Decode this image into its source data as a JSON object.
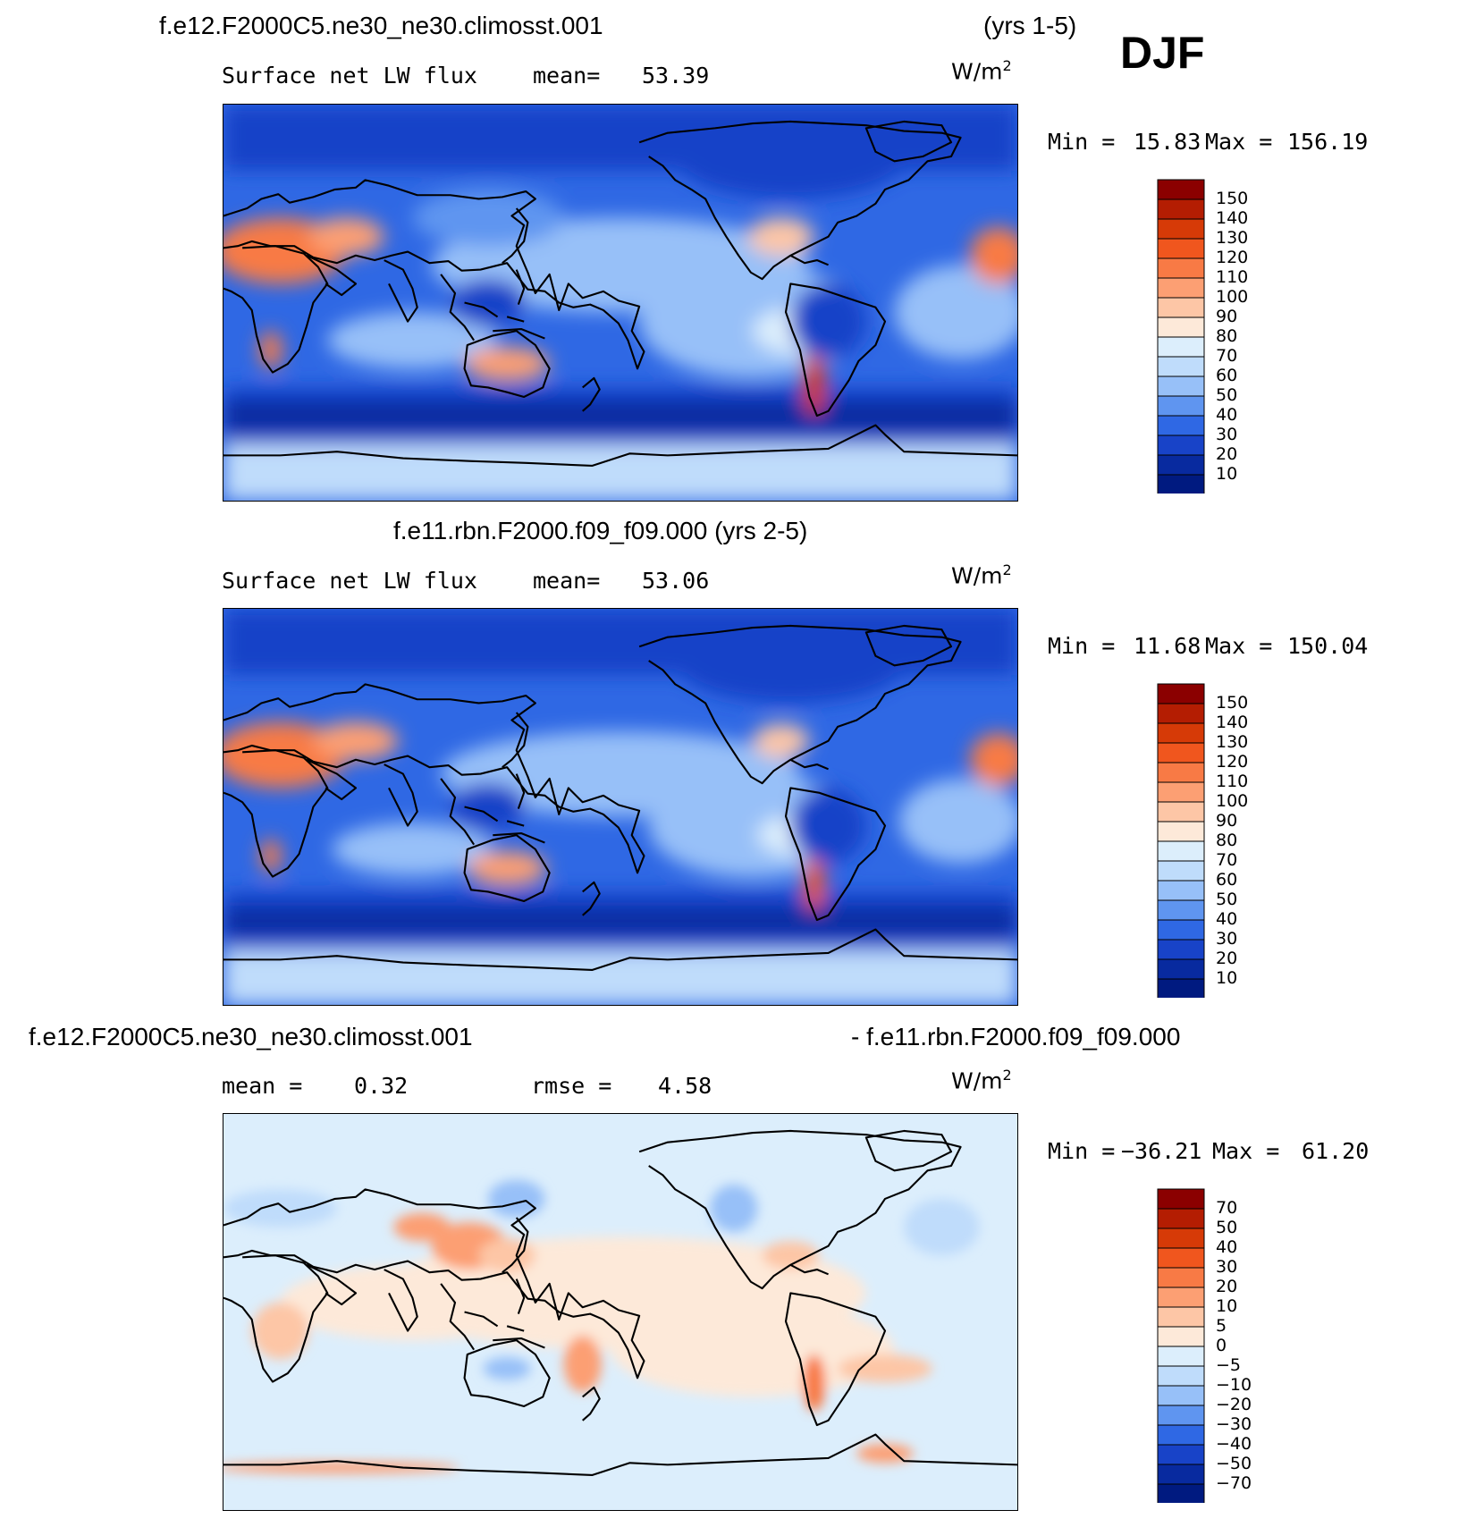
{
  "figure": {
    "season": "DJF",
    "panels": [
      {
        "id": "top",
        "case_title": "f.e12.F2000C5.ne30_ne30.climosst.001",
        "years": "(yrs 1-5)",
        "variable": "Surface net LW flux",
        "stat1_label": "mean=",
        "stat1_value": "53.39",
        "units": "W/m",
        "units_exp": "2",
        "min_label": "Min =",
        "min_value": "15.83",
        "max_label": "Max =",
        "max_value": "156.19",
        "colorbar": {
          "labels": [
            "150",
            "140",
            "130",
            "120",
            "110",
            "100",
            "90",
            "80",
            "70",
            "60",
            "50",
            "40",
            "30",
            "20",
            "10"
          ],
          "colors": [
            "#8b0000",
            "#b41d02",
            "#d63a07",
            "#f0561e",
            "#f87a45",
            "#fc9f73",
            "#fdc6a6",
            "#fde9d9",
            "#dceefc",
            "#bfdcfb",
            "#97c0f8",
            "#5f95f0",
            "#2f68e4",
            "#1843c8",
            "#082a9f",
            "#001a80"
          ]
        }
      },
      {
        "id": "middle",
        "case_title": "f.e11.rbn.F2000.f09_f09.000 (yrs 2-5)",
        "variable": "Surface net LW flux",
        "stat1_label": "mean=",
        "stat1_value": "53.06",
        "units": "W/m",
        "units_exp": "2",
        "min_label": "Min =",
        "min_value": "11.68",
        "max_label": "Max =",
        "max_value": "150.04",
        "colorbar": {
          "labels": [
            "150",
            "140",
            "130",
            "120",
            "110",
            "100",
            "90",
            "80",
            "70",
            "60",
            "50",
            "40",
            "30",
            "20",
            "10"
          ],
          "colors": [
            "#8b0000",
            "#b41d02",
            "#d63a07",
            "#f0561e",
            "#f87a45",
            "#fc9f73",
            "#fdc6a6",
            "#fde9d9",
            "#dceefc",
            "#bfdcfb",
            "#97c0f8",
            "#5f95f0",
            "#2f68e4",
            "#1843c8",
            "#082a9f",
            "#001a80"
          ]
        }
      },
      {
        "id": "bottom",
        "case_title_left": "f.e12.F2000C5.ne30_ne30.climosst.001",
        "case_title_right": "- f.e11.rbn.F2000.f09_f09.000",
        "stat1_label": "mean =",
        "stat1_value": "0.32",
        "stat2_label": "rmse =",
        "stat2_value": "4.58",
        "units": "W/m",
        "units_exp": "2",
        "min_label": "Min =",
        "min_value": "−36.21",
        "max_label": "Max =",
        "max_value": "61.20",
        "colorbar": {
          "labels": [
            "70",
            "50",
            "40",
            "30",
            "20",
            "10",
            "5",
            "0",
            "−5",
            "−10",
            "−20",
            "−30",
            "−40",
            "−50",
            "−70"
          ],
          "colors": [
            "#8b0000",
            "#b41d02",
            "#d63a07",
            "#f0561e",
            "#f87a45",
            "#fc9f73",
            "#fdc6a6",
            "#fde9d9",
            "#dceefc",
            "#bfdcfb",
            "#97c0f8",
            "#5f95f0",
            "#2f68e4",
            "#1843c8",
            "#082a9f",
            "#001a80"
          ]
        }
      }
    ]
  }
}
